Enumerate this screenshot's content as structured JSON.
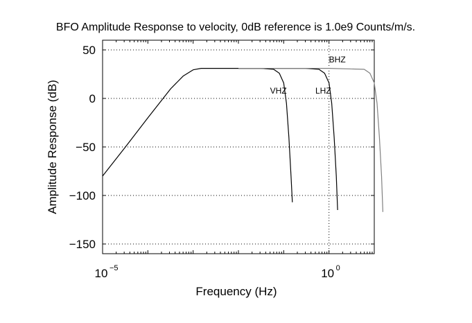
{
  "chart_data": {
    "type": "line",
    "title": "BFO Amplitude Response to velocity, 0dB reference is 1.0e9 Counts/m/s.",
    "xlabel": "Frequency (Hz)",
    "ylabel": "Amplitude Response (dB)",
    "x_scale": "log",
    "xlim": [
      1e-05,
      10
    ],
    "ylim": [
      -160,
      60
    ],
    "grid": true,
    "x_ticks": [
      {
        "value": 1e-05,
        "base": "10",
        "exponent": "−5"
      },
      {
        "value": 1,
        "base": "10",
        "exponent": "0"
      }
    ],
    "y_ticks": [
      {
        "value": 50,
        "label": "50"
      },
      {
        "value": 0,
        "label": "0"
      },
      {
        "value": -50,
        "label": "−50"
      },
      {
        "value": -100,
        "label": "−100"
      },
      {
        "value": -150,
        "label": "−150"
      }
    ],
    "series": [
      {
        "name": "VHZ",
        "color": "#000000",
        "label_at": {
          "x": 0.05,
          "y": 5
        },
        "points": [
          {
            "x": 1e-05,
            "y": -80
          },
          {
            "x": 3.2e-05,
            "y": -50
          },
          {
            "x": 0.0001,
            "y": -20
          },
          {
            "x": 0.00032,
            "y": 10
          },
          {
            "x": 0.0006,
            "y": 23
          },
          {
            "x": 0.001,
            "y": 29.5
          },
          {
            "x": 0.0015,
            "y": 31
          },
          {
            "x": 0.003,
            "y": 31
          },
          {
            "x": 0.01,
            "y": 31
          },
          {
            "x": 0.03,
            "y": 31
          },
          {
            "x": 0.06,
            "y": 30
          },
          {
            "x": 0.08,
            "y": 26
          },
          {
            "x": 0.1,
            "y": 16
          },
          {
            "x": 0.115,
            "y": -5
          },
          {
            "x": 0.13,
            "y": -40
          },
          {
            "x": 0.145,
            "y": -80
          },
          {
            "x": 0.155,
            "y": -107
          }
        ]
      },
      {
        "name": "LHZ",
        "color": "#000000",
        "label_at": {
          "x": 0.5,
          "y": 5
        },
        "points": [
          {
            "x": 0.01,
            "y": 31
          },
          {
            "x": 0.1,
            "y": 31
          },
          {
            "x": 0.3,
            "y": 31
          },
          {
            "x": 0.6,
            "y": 30
          },
          {
            "x": 0.8,
            "y": 26
          },
          {
            "x": 1.0,
            "y": 16
          },
          {
            "x": 1.15,
            "y": -5
          },
          {
            "x": 1.3,
            "y": -40
          },
          {
            "x": 1.45,
            "y": -80
          },
          {
            "x": 1.55,
            "y": -115
          }
        ]
      },
      {
        "name": "BHZ",
        "color": "#808080",
        "label_at": {
          "x": 1.0,
          "y": 37
        },
        "points": [
          {
            "x": 0.01,
            "y": 31
          },
          {
            "x": 0.1,
            "y": 31
          },
          {
            "x": 1.0,
            "y": 31
          },
          {
            "x": 6.0,
            "y": 30
          },
          {
            "x": 8.0,
            "y": 26
          },
          {
            "x": 10.0,
            "y": 16
          },
          {
            "x": 11.5,
            "y": -5
          },
          {
            "x": 13.0,
            "y": -40
          },
          {
            "x": 14.5,
            "y": -80
          },
          {
            "x": 15.5,
            "y": -117
          }
        ]
      }
    ]
  }
}
